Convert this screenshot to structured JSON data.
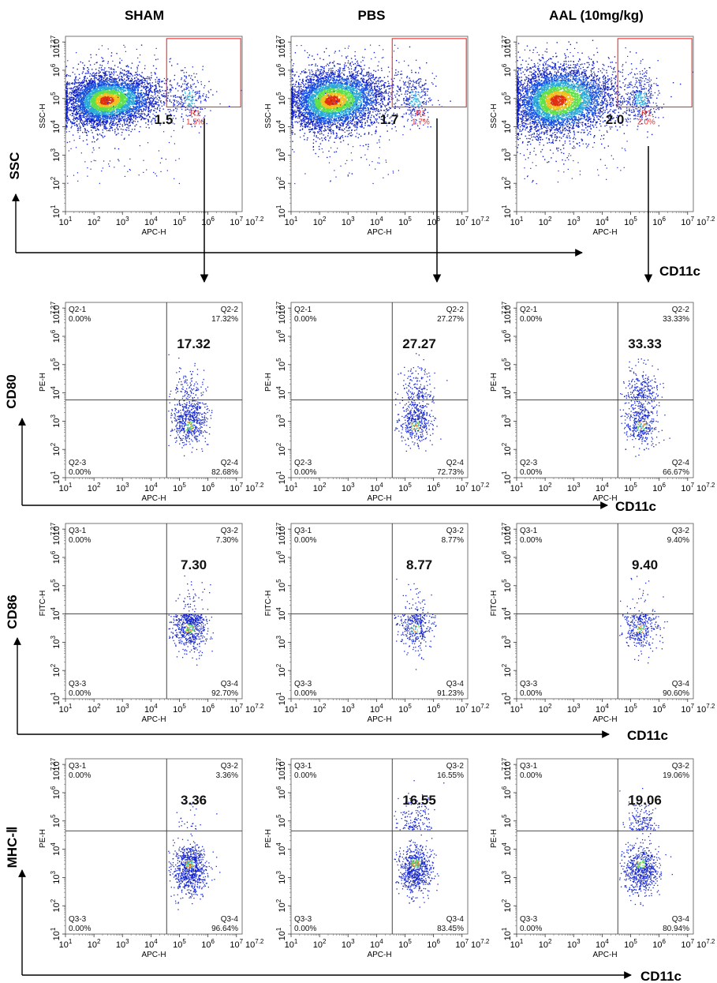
{
  "columns": [
    "SHAM",
    "PBS",
    "AAL (10mg/kg)"
  ],
  "row_markers": [
    "SSC",
    "CD80",
    "CD86",
    "MHC-Ⅱ"
  ],
  "x_marker": "CD11c",
  "chart_data": [
    {
      "type": "scatter",
      "row": 0,
      "col": 0,
      "xlabel": "APC-H",
      "ylabel": "SSC-H",
      "x_range_log10": [
        1,
        7.2
      ],
      "y_range_log10": [
        1,
        7.2
      ],
      "gate_name": "R1",
      "gate_pct": "1.5%",
      "big_value": "1.5"
    },
    {
      "type": "scatter",
      "row": 0,
      "col": 1,
      "xlabel": "APC-H",
      "ylabel": "SSC-H",
      "x_range_log10": [
        1,
        7.2
      ],
      "y_range_log10": [
        1,
        7.2
      ],
      "gate_name": "R1",
      "gate_pct": "1.7%",
      "big_value": "1.7"
    },
    {
      "type": "scatter",
      "row": 0,
      "col": 2,
      "xlabel": "APC-H",
      "ylabel": "SSC-H",
      "x_range_log10": [
        1,
        7.2
      ],
      "y_range_log10": [
        1,
        7.2
      ],
      "gate_name": "R1",
      "gate_pct": "2.0%",
      "big_value": "2.0"
    },
    {
      "type": "scatter",
      "row": 1,
      "col": 0,
      "xlabel": "APC-H",
      "ylabel": "PE-H",
      "x_range_log10": [
        1,
        7.2
      ],
      "y_range_log10": [
        1,
        7.2
      ],
      "quadrants": [
        {
          "name": "Q2-1",
          "pct": "0.00%"
        },
        {
          "name": "Q2-2",
          "pct": "17.32%"
        },
        {
          "name": "Q2-3",
          "pct": "0.00%"
        },
        {
          "name": "Q2-4",
          "pct": "82.68%"
        }
      ],
      "big_value": "17.32"
    },
    {
      "type": "scatter",
      "row": 1,
      "col": 1,
      "xlabel": "APC-H",
      "ylabel": "PE-H",
      "x_range_log10": [
        1,
        7.2
      ],
      "y_range_log10": [
        1,
        7.2
      ],
      "quadrants": [
        {
          "name": "Q2-1",
          "pct": "0.00%"
        },
        {
          "name": "Q2-2",
          "pct": "27.27%"
        },
        {
          "name": "Q2-3",
          "pct": "0.00%"
        },
        {
          "name": "Q2-4",
          "pct": "72.73%"
        }
      ],
      "big_value": "27.27"
    },
    {
      "type": "scatter",
      "row": 1,
      "col": 2,
      "xlabel": "APC-H",
      "ylabel": "PE-H",
      "x_range_log10": [
        1,
        7.2
      ],
      "y_range_log10": [
        1,
        7.2
      ],
      "quadrants": [
        {
          "name": "Q2-1",
          "pct": "0.00%"
        },
        {
          "name": "Q2-2",
          "pct": "33.33%"
        },
        {
          "name": "Q2-3",
          "pct": "0.00%"
        },
        {
          "name": "Q2-4",
          "pct": "66.67%"
        }
      ],
      "big_value": "33.33"
    },
    {
      "type": "scatter",
      "row": 2,
      "col": 0,
      "xlabel": "APC-H",
      "ylabel": "FITC-H",
      "x_range_log10": [
        1,
        7.2
      ],
      "y_range_log10": [
        1,
        7.2
      ],
      "quadrants": [
        {
          "name": "Q3-1",
          "pct": "0.00%"
        },
        {
          "name": "Q3-2",
          "pct": "7.30%"
        },
        {
          "name": "Q3-3",
          "pct": "0.00%"
        },
        {
          "name": "Q3-4",
          "pct": "92.70%"
        }
      ],
      "big_value": "7.30"
    },
    {
      "type": "scatter",
      "row": 2,
      "col": 1,
      "xlabel": "APC-H",
      "ylabel": "FITC-H",
      "x_range_log10": [
        1,
        7.2
      ],
      "y_range_log10": [
        1,
        7.2
      ],
      "quadrants": [
        {
          "name": "Q3-1",
          "pct": "0.00%"
        },
        {
          "name": "Q3-2",
          "pct": "8.77%"
        },
        {
          "name": "Q3-3",
          "pct": "0.00%"
        },
        {
          "name": "Q3-4",
          "pct": "91.23%"
        }
      ],
      "big_value": "8.77"
    },
    {
      "type": "scatter",
      "row": 2,
      "col": 2,
      "xlabel": "APC-H",
      "ylabel": "FITC-H",
      "x_range_log10": [
        1,
        7.2
      ],
      "y_range_log10": [
        1,
        7.2
      ],
      "quadrants": [
        {
          "name": "Q3-1",
          "pct": "0.00%"
        },
        {
          "name": "Q3-2",
          "pct": "9.40%"
        },
        {
          "name": "Q3-3",
          "pct": "0.00%"
        },
        {
          "name": "Q3-4",
          "pct": "90.60%"
        }
      ],
      "big_value": "9.40"
    },
    {
      "type": "scatter",
      "row": 3,
      "col": 0,
      "xlabel": "APC-H",
      "ylabel": "PE-H",
      "x_range_log10": [
        1,
        7.2
      ],
      "y_range_log10": [
        1,
        7.2
      ],
      "quadrants": [
        {
          "name": "Q3-1",
          "pct": "0.00%"
        },
        {
          "name": "Q3-2",
          "pct": "3.36%"
        },
        {
          "name": "Q3-3",
          "pct": "0.00%"
        },
        {
          "name": "Q3-4",
          "pct": "96.64%"
        }
      ],
      "big_value": "3.36"
    },
    {
      "type": "scatter",
      "row": 3,
      "col": 1,
      "xlabel": "APC-H",
      "ylabel": "PE-H",
      "x_range_log10": [
        1,
        7.2
      ],
      "y_range_log10": [
        1,
        7.2
      ],
      "quadrants": [
        {
          "name": "Q3-1",
          "pct": "0.00%"
        },
        {
          "name": "Q3-2",
          "pct": "16.55%"
        },
        {
          "name": "Q3-3",
          "pct": "0.00%"
        },
        {
          "name": "Q3-4",
          "pct": "83.45%"
        }
      ],
      "big_value": "16.55"
    },
    {
      "type": "scatter",
      "row": 3,
      "col": 2,
      "xlabel": "APC-H",
      "ylabel": "PE-H",
      "x_range_log10": [
        1,
        7.2
      ],
      "y_range_log10": [
        1,
        7.2
      ],
      "quadrants": [
        {
          "name": "Q3-1",
          "pct": "0.00%"
        },
        {
          "name": "Q3-2",
          "pct": "19.06%"
        },
        {
          "name": "Q3-3",
          "pct": "0.00%"
        },
        {
          "name": "Q3-4",
          "pct": "80.94%"
        }
      ],
      "big_value": "19.06"
    }
  ]
}
